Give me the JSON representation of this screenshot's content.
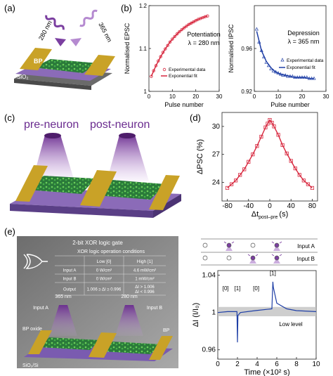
{
  "panels": {
    "a": {
      "label": "(a)",
      "wavelengths": [
        "280 nm",
        "365 nm"
      ],
      "layers": [
        "BP",
        "SiO₂",
        "Si"
      ]
    },
    "b": {
      "label": "(b)"
    },
    "c": {
      "label": "(c)",
      "pre_label": "pre-neuron",
      "post_label": "post-neuron"
    },
    "d": {
      "label": "(d)"
    },
    "e": {
      "label": "(e)",
      "inset": {
        "title": "2-bit XOR logic gate",
        "table_title": "XOR logic operation conditions",
        "headers": [
          "",
          "Low [0]",
          "High [1]"
        ],
        "rows": [
          [
            "Input A",
            "0 W/cm²",
            "4.6 mW/cm²"
          ],
          [
            "Input B",
            "0 W/cm²",
            "1 mW/cm²"
          ],
          [
            "Output",
            "1.006 ≥ ΔI ≥ 0.996",
            "ΔI > 1.006\nΔI < 0.996"
          ]
        ],
        "device_labels": {
          "uv_a": "365 nm",
          "uv_b": "280 nm",
          "input_a": "Input A",
          "input_b": "Input B",
          "bp_oxide": "BP oxide",
          "bp": "BP",
          "substrate": "SiO₂/Si"
        }
      },
      "input_labels": [
        "Input A",
        "Input B"
      ],
      "low_level_label": "Low level"
    }
  },
  "colors": {
    "accent_red": "#d7263d",
    "accent_blue": "#1f3fa6",
    "purple": "#7b3fa0",
    "gold": "#c9a227",
    "green": "#2e9b3e"
  },
  "chart_data": [
    {
      "id": "b-left",
      "type": "scatter",
      "title": "Potentiation",
      "annotation": "λ = 280 nm",
      "xlabel": "Pulse number",
      "ylabel": "Normalised EPSC",
      "xlim": [
        0,
        30
      ],
      "ylim": [
        1.0,
        1.2
      ],
      "xticks": [
        0,
        10,
        20,
        30
      ],
      "yticks": [
        1.0,
        1.1,
        1.2
      ],
      "legend": [
        "Experimental data",
        "Exponential fit"
      ],
      "series": [
        {
          "name": "Experimental data",
          "x": [
            1,
            2,
            3,
            4,
            5,
            6,
            7,
            8,
            9,
            10,
            11,
            12,
            13,
            14,
            15,
            16,
            17,
            18,
            19,
            20,
            21,
            22,
            23,
            24,
            25
          ],
          "y": [
            1.035,
            1.048,
            1.06,
            1.071,
            1.081,
            1.091,
            1.099,
            1.107,
            1.115,
            1.122,
            1.128,
            1.134,
            1.139,
            1.144,
            1.148,
            1.152,
            1.156,
            1.159,
            1.162,
            1.165,
            1.168,
            1.17,
            1.172,
            1.174,
            1.176
          ]
        },
        {
          "name": "Exponential fit",
          "x": [
            1,
            3,
            5,
            7,
            9,
            11,
            13,
            15,
            17,
            19,
            21,
            23,
            25
          ],
          "y": [
            1.035,
            1.06,
            1.081,
            1.099,
            1.115,
            1.128,
            1.139,
            1.148,
            1.156,
            1.162,
            1.168,
            1.172,
            1.176
          ]
        }
      ]
    },
    {
      "id": "b-right",
      "type": "scatter",
      "title": "Depression",
      "annotation": "λ = 365 nm",
      "xlabel": "Pulse number",
      "ylabel": "Normalised IPSC",
      "xlim": [
        0,
        30
      ],
      "ylim": [
        0.92,
        1.0
      ],
      "xticks": [
        0,
        10,
        20,
        30
      ],
      "yticks": [
        0.92,
        0.96
      ],
      "legend": [
        "Experimental data",
        "Exponential fit"
      ],
      "series": [
        {
          "name": "Experimental data",
          "x": [
            1,
            2,
            3,
            4,
            5,
            6,
            7,
            8,
            9,
            10,
            11,
            12,
            13,
            14,
            15,
            16,
            17,
            18,
            19,
            20,
            21,
            22,
            23,
            24,
            25
          ],
          "y": [
            0.978,
            0.966,
            0.958,
            0.952,
            0.947,
            0.944,
            0.941,
            0.939,
            0.938,
            0.937,
            0.936,
            0.935,
            0.935,
            0.934,
            0.934,
            0.934,
            0.933,
            0.933,
            0.933,
            0.933,
            0.933,
            0.933,
            0.932,
            0.932,
            0.932
          ]
        },
        {
          "name": "Exponential fit",
          "x": [
            1,
            3,
            5,
            7,
            9,
            11,
            13,
            15,
            17,
            19,
            21,
            23,
            25
          ],
          "y": [
            0.976,
            0.958,
            0.948,
            0.942,
            0.938,
            0.936,
            0.935,
            0.934,
            0.933,
            0.933,
            0.933,
            0.932,
            0.932
          ]
        }
      ]
    },
    {
      "id": "d",
      "type": "scatter",
      "xlabel": "Δt",
      "xlabel_sub": "post–pre",
      "xlabel_unit": "(s)",
      "ylabel": "ΔPSC (%)",
      "xlim": [
        -90,
        90
      ],
      "ylim": [
        22,
        31.5
      ],
      "xticks": [
        -80,
        -40,
        0,
        40,
        80
      ],
      "yticks": [
        24,
        27,
        30
      ],
      "series": [
        {
          "name": "",
          "x": [
            -80,
            -72,
            -64,
            -56,
            -48,
            -40,
            -32,
            -24,
            -16,
            -8,
            -4,
            0,
            4,
            8,
            16,
            24,
            32,
            40,
            48,
            56,
            64,
            72,
            80
          ],
          "y": [
            23.4,
            23.8,
            24.2,
            24.8,
            25.4,
            26.2,
            27.0,
            27.9,
            28.9,
            29.9,
            30.3,
            30.7,
            30.4,
            30.0,
            29.1,
            28.0,
            27.1,
            26.3,
            25.5,
            24.8,
            24.2,
            23.8,
            23.4
          ]
        }
      ]
    },
    {
      "id": "e",
      "type": "line",
      "xlabel": "Time (×10² s)",
      "ylabel": "ΔI (I/I₀)",
      "xlim": [
        0,
        10
      ],
      "ylim": [
        0.95,
        1.045
      ],
      "xticks": [
        0,
        2,
        4,
        6,
        8,
        10
      ],
      "yticks": [
        0.96,
        1.0,
        1.04
      ],
      "low_band": [
        0.996,
        1.006
      ],
      "state_labels": [
        {
          "x": 0.8,
          "y": 1.024,
          "text": "[0]"
        },
        {
          "x": 2.0,
          "y": 1.024,
          "text": "[1]"
        },
        {
          "x": 3.9,
          "y": 1.024,
          "text": "[0]"
        },
        {
          "x": 5.6,
          "y": 1.04,
          "text": "[1]"
        }
      ],
      "series": [
        {
          "name": "",
          "x": [
            0,
            1,
            1.95,
            2.0,
            2.05,
            2.3,
            3.8,
            5.5,
            5.6,
            5.65,
            6.0,
            7.0,
            8.0,
            10.0
          ],
          "y": [
            1.0,
            1.001,
            1.001,
            0.968,
            0.997,
            1.0,
            1.002,
            1.004,
            1.033,
            1.027,
            1.01,
            1.004,
            1.002,
            1.001
          ]
        }
      ]
    }
  ]
}
